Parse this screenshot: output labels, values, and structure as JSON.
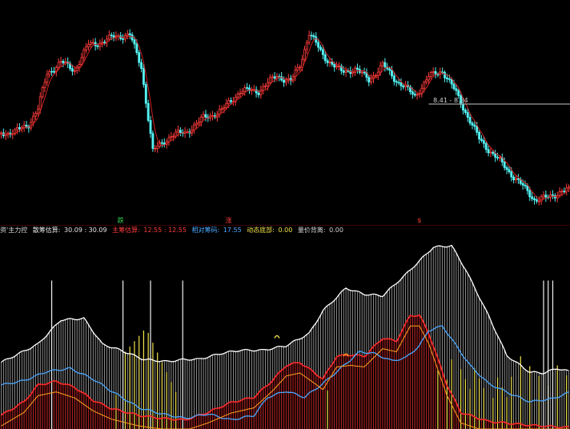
{
  "colors": {
    "background": "#000000",
    "candle_up": "#ff3c3c",
    "candle_down": "#54f2f2",
    "ma_line": "#cc2222",
    "price_tag_line": "#a0a0a0",
    "white_bars": "#e6e6e6",
    "yellow_bars": "#f2e24a",
    "red_bars": "#b01e1e",
    "red_line": "#ff2a2a",
    "blue_line": "#4aa8ff",
    "orange_line": "#ffa020",
    "marker_green": "#33dd55",
    "marker_red": "#ff3c3c"
  },
  "price_panel": {
    "price_tag": "8.41 - 8.34",
    "markers": [
      {
        "label": "跌",
        "color": "marker_green",
        "index": 52
      },
      {
        "label": "涨",
        "color": "marker_red",
        "index": 99
      },
      {
        "label": "$",
        "color": "marker_red",
        "index": 182
      }
    ]
  },
  "indicator_legend": [
    {
      "label": "资'主力控",
      "value": "",
      "cls": "lg-title"
    },
    {
      "label": "散筹估算:",
      "value": "30.09 : 30.09",
      "cls": "lg-white"
    },
    {
      "label": "主筹估算:",
      "value": "12.55 : 12.55",
      "cls": "lg-red"
    },
    {
      "label": "相对筹码:",
      "value": "17.55",
      "cls": "lg-blue"
    },
    {
      "label": "动态底部:",
      "value": "0.00",
      "cls": "lg-yellow"
    },
    {
      "label": "量价背离:",
      "value": "0.00",
      "cls": "lg-gray"
    }
  ],
  "chart_data": [
    {
      "type": "candlestick",
      "title": "",
      "price_tag": "8.41 - 8.34",
      "close_keypoints": [
        [
          0,
          228
        ],
        [
          6,
          227
        ],
        [
          12,
          213
        ],
        [
          16,
          187
        ],
        [
          20,
          126
        ],
        [
          26,
          107
        ],
        [
          32,
          120
        ],
        [
          38,
          77
        ],
        [
          44,
          72
        ],
        [
          50,
          62
        ],
        [
          56,
          60
        ],
        [
          61,
          115
        ],
        [
          66,
          260
        ],
        [
          74,
          232
        ],
        [
          80,
          228
        ],
        [
          88,
          203
        ],
        [
          96,
          190
        ],
        [
          104,
          156
        ],
        [
          112,
          156
        ],
        [
          120,
          130
        ],
        [
          126,
          140
        ],
        [
          130,
          112
        ],
        [
          134,
          56
        ],
        [
          140,
          95
        ],
        [
          148,
          124
        ],
        [
          154,
          118
        ],
        [
          160,
          137
        ],
        [
          166,
          112
        ],
        [
          172,
          138
        ],
        [
          180,
          165
        ],
        [
          186,
          132
        ],
        [
          192,
          121
        ],
        [
          198,
          160
        ],
        [
          208,
          239
        ],
        [
          220,
          290
        ],
        [
          232,
          342
        ],
        [
          238,
          340
        ],
        [
          244,
          327
        ],
        [
          248,
          328
        ]
      ],
      "y_price_top": 0,
      "y_price_bottom": 360
    },
    {
      "type": "bar+line",
      "title": "资'主力控",
      "series": [
        {
          "name": "散筹估算",
          "last_value": 30.09,
          "color": "white_bars",
          "keypoints": [
            [
              0,
              88
            ],
            [
              8,
              100
            ],
            [
              16,
              112
            ],
            [
              26,
              144
            ],
            [
              36,
              146
            ],
            [
              44,
              112
            ],
            [
              52,
              104
            ],
            [
              62,
              92
            ],
            [
              72,
              89
            ],
            [
              80,
              92
            ],
            [
              86,
              92
            ],
            [
              96,
              100
            ],
            [
              104,
              104
            ],
            [
              114,
              104
            ],
            [
              124,
              110
            ],
            [
              134,
              126
            ],
            [
              140,
              156
            ],
            [
              150,
              186
            ],
            [
              158,
              178
            ],
            [
              166,
              176
            ],
            [
              176,
              204
            ],
            [
              188,
              240
            ],
            [
              196,
              242
            ],
            [
              202,
              211
            ],
            [
              212,
              150
            ],
            [
              220,
              97
            ],
            [
              230,
              75
            ],
            [
              236,
              74
            ],
            [
              242,
              80
            ],
            [
              247,
              76
            ]
          ]
        },
        {
          "name": "主筹估算",
          "last_value": 12.55,
          "color": "red_line",
          "keypoints": [
            [
              0,
              18
            ],
            [
              10,
              36
            ],
            [
              16,
              58
            ],
            [
              24,
              63
            ],
            [
              32,
              55
            ],
            [
              40,
              38
            ],
            [
              48,
              27
            ],
            [
              60,
              18
            ],
            [
              70,
              14
            ],
            [
              80,
              12
            ],
            [
              90,
              22
            ],
            [
              100,
              35
            ],
            [
              110,
              42
            ],
            [
              118,
              64
            ],
            [
              124,
              84
            ],
            [
              130,
              88
            ],
            [
              136,
              75
            ],
            [
              140,
              66
            ],
            [
              146,
              96
            ],
            [
              152,
              98
            ],
            [
              158,
              96
            ],
            [
              166,
              120
            ],
            [
              172,
              116
            ],
            [
              178,
              150
            ],
            [
              182,
              150
            ],
            [
              186,
              127
            ],
            [
              194,
              58
            ],
            [
              200,
              22
            ],
            [
              212,
              10
            ],
            [
              230,
              5
            ],
            [
              247,
              2
            ]
          ]
        },
        {
          "name": "相对筹码",
          "last_value": 17.55,
          "color": "blue_line",
          "keypoints": [
            [
              0,
              58
            ],
            [
              10,
              64
            ],
            [
              20,
              76
            ],
            [
              30,
              80
            ],
            [
              40,
              66
            ],
            [
              48,
              50
            ],
            [
              60,
              28
            ],
            [
              70,
              20
            ],
            [
              80,
              14
            ],
            [
              90,
              20
            ],
            [
              100,
              12
            ],
            [
              110,
              18
            ],
            [
              116,
              42
            ],
            [
              124,
              50
            ],
            [
              132,
              42
            ],
            [
              140,
              60
            ],
            [
              150,
              86
            ],
            [
              156,
              102
            ],
            [
              162,
              100
            ],
            [
              170,
              90
            ],
            [
              176,
              94
            ],
            [
              182,
              110
            ],
            [
              186,
              130
            ],
            [
              192,
              136
            ],
            [
              198,
              110
            ],
            [
              204,
              84
            ],
            [
              212,
              60
            ],
            [
              222,
              46
            ],
            [
              230,
              36
            ],
            [
              240,
              40
            ],
            [
              247,
              48
            ]
          ]
        },
        {
          "name": "动态底部",
          "last_value": 0.0,
          "color": "yellow_bars"
        },
        {
          "name": "量价背离",
          "last_value": 0.0,
          "color": "white_bars"
        }
      ],
      "y_min": 0,
      "y_max": 260
    }
  ]
}
